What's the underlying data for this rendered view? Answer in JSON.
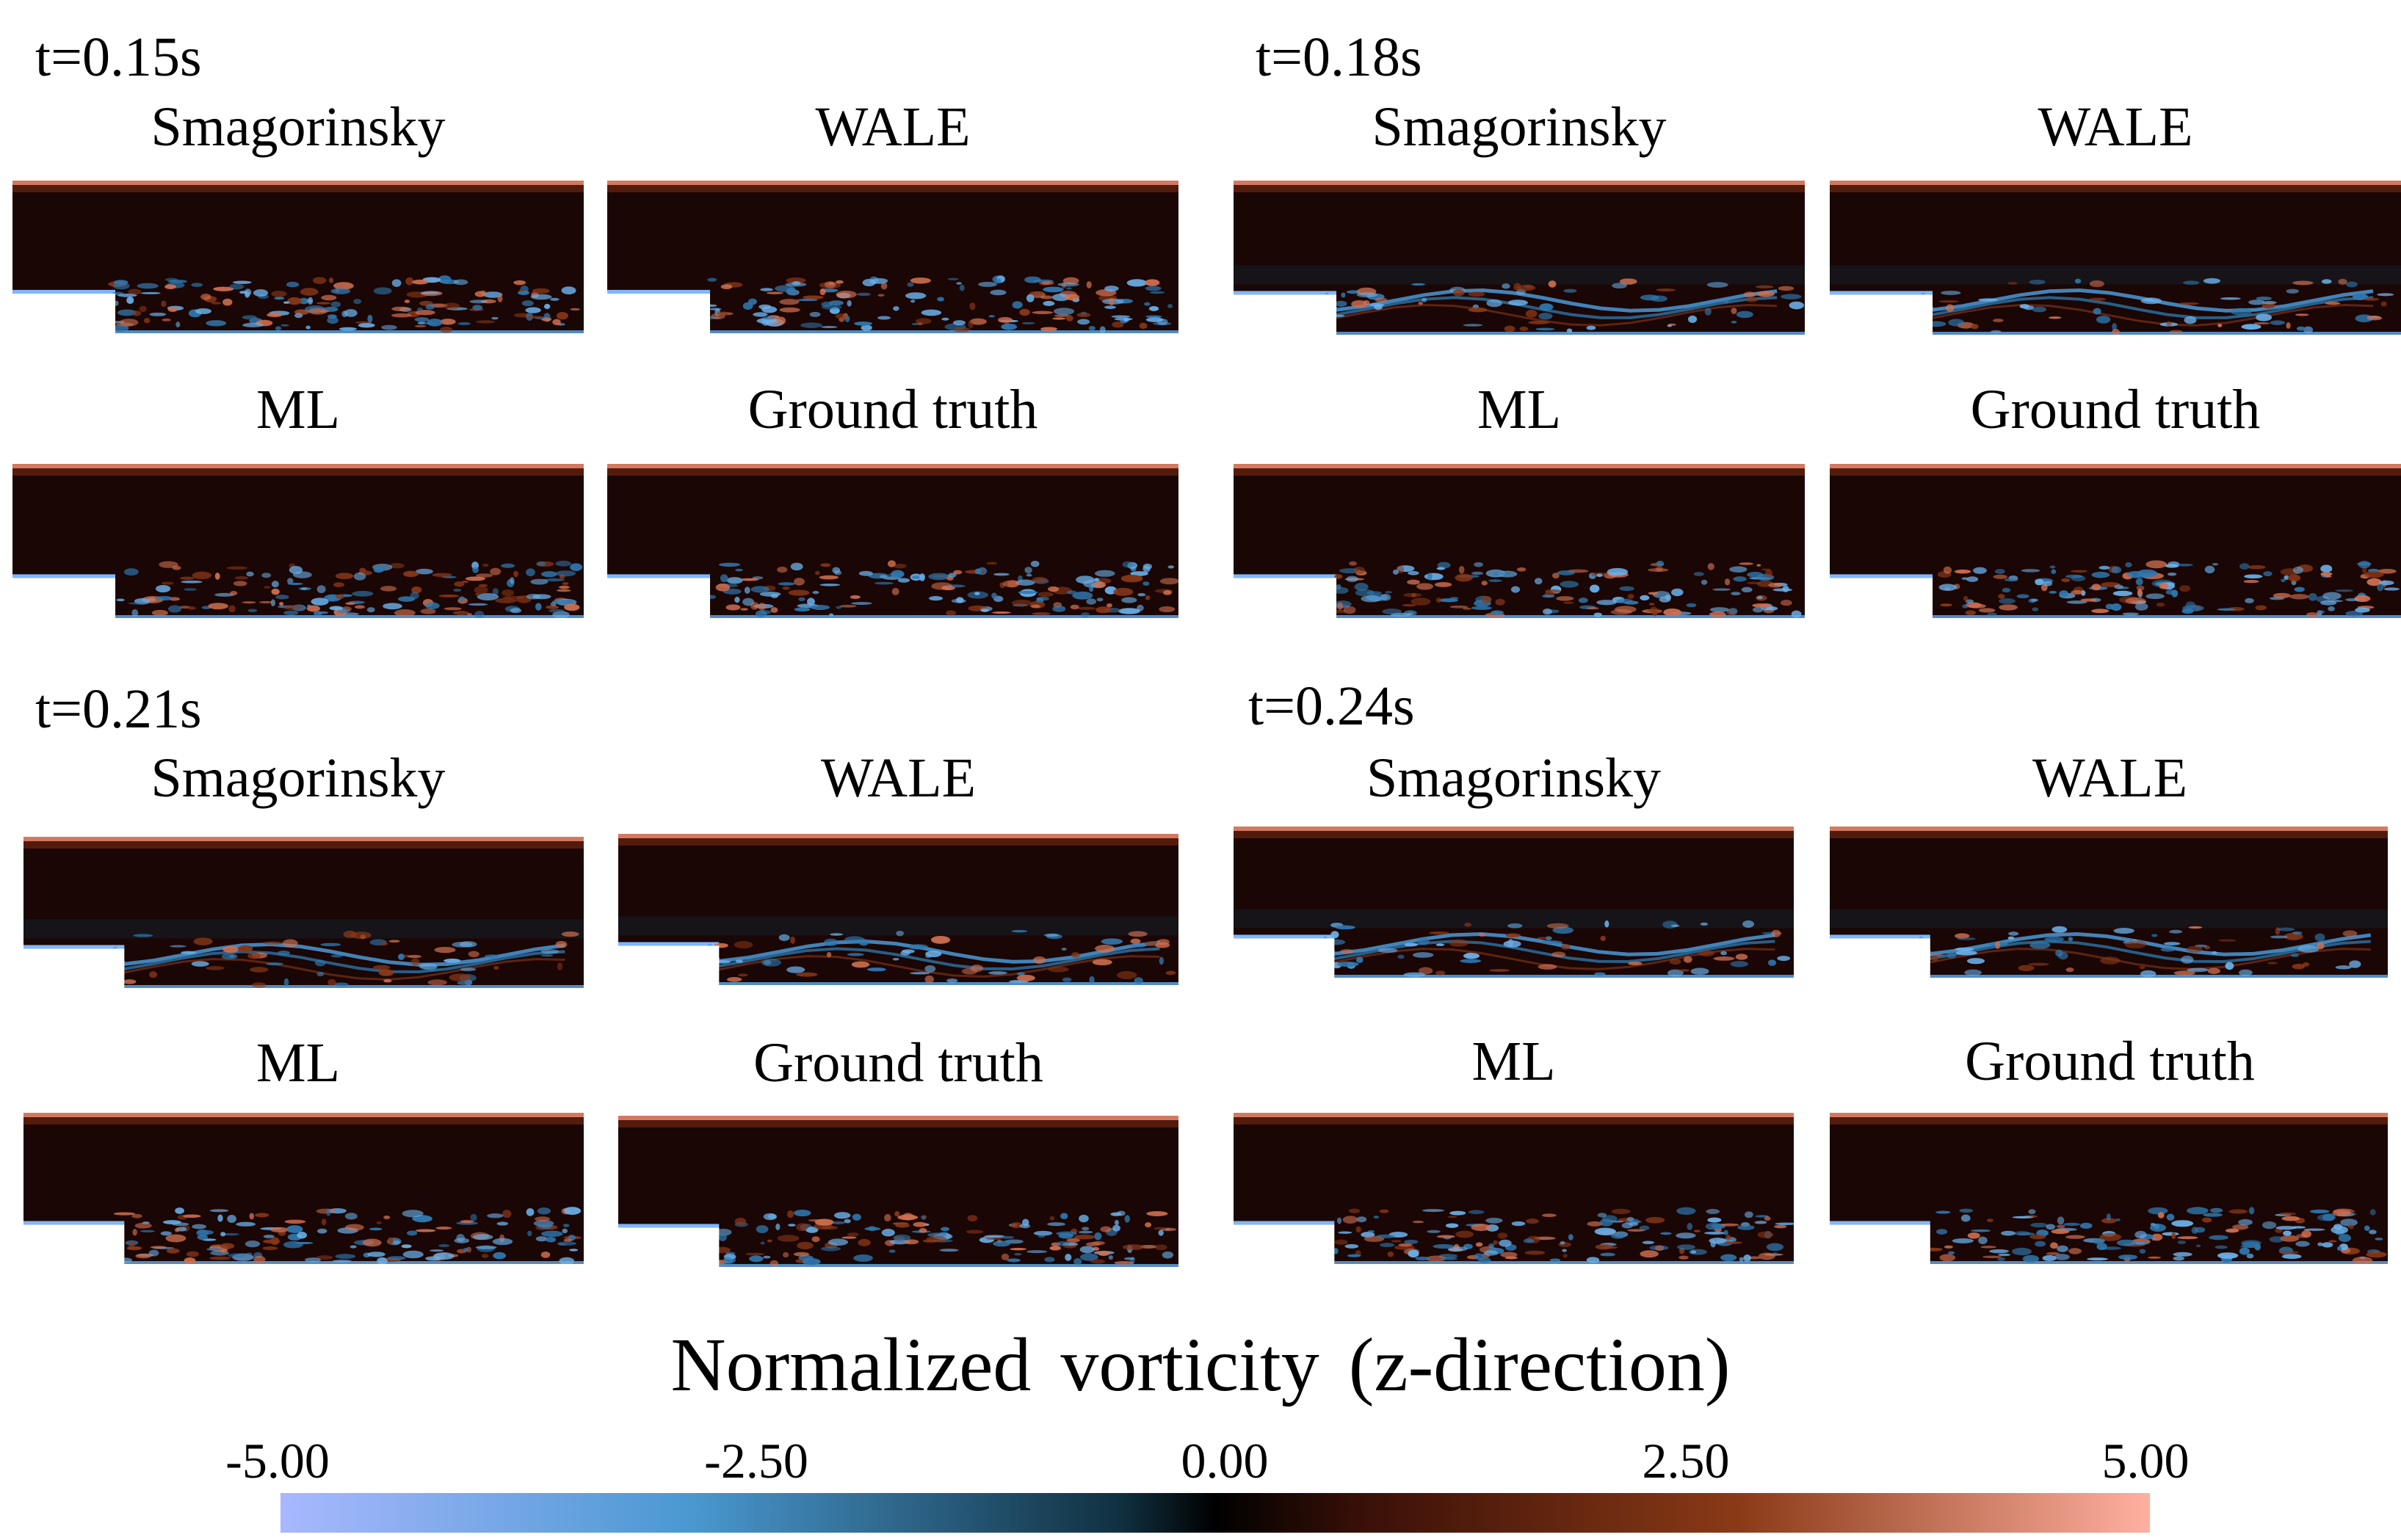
{
  "groups": [
    {
      "time": "t=0.15s",
      "panels": [
        {
          "label": "Smagorinsky",
          "variant": "fine"
        },
        {
          "label": "WALE",
          "variant": "fine"
        },
        {
          "label": "ML",
          "variant": "fine"
        },
        {
          "label": "Ground truth",
          "variant": "fine"
        }
      ]
    },
    {
      "time": "t=0.18s",
      "panels": [
        {
          "label": "Smagorinsky",
          "variant": "smooth"
        },
        {
          "label": "WALE",
          "variant": "smooth"
        },
        {
          "label": "ML",
          "variant": "fine"
        },
        {
          "label": "Ground truth",
          "variant": "fine"
        }
      ]
    },
    {
      "time": "t=0.21s",
      "panels": [
        {
          "label": "Smagorinsky",
          "variant": "smooth"
        },
        {
          "label": "WALE",
          "variant": "smooth"
        },
        {
          "label": "ML",
          "variant": "fine"
        },
        {
          "label": "Ground truth",
          "variant": "fine"
        }
      ]
    },
    {
      "time": "t=0.24s",
      "panels": [
        {
          "label": "Smagorinsky",
          "variant": "smooth"
        },
        {
          "label": "WALE",
          "variant": "smooth"
        },
        {
          "label": "ML",
          "variant": "fine"
        },
        {
          "label": "Ground truth",
          "variant": "fine"
        }
      ]
    }
  ],
  "colorbar": {
    "title": "Normalized vorticity (z-direction)",
    "ticks": [
      "-5.00",
      "-2.50",
      "0.00",
      "2.50",
      "5.00"
    ],
    "colors": {
      "min": "#a8b8ff",
      "zero": "#000000",
      "max": "#ffb0a0",
      "background": "#1a0604"
    }
  }
}
